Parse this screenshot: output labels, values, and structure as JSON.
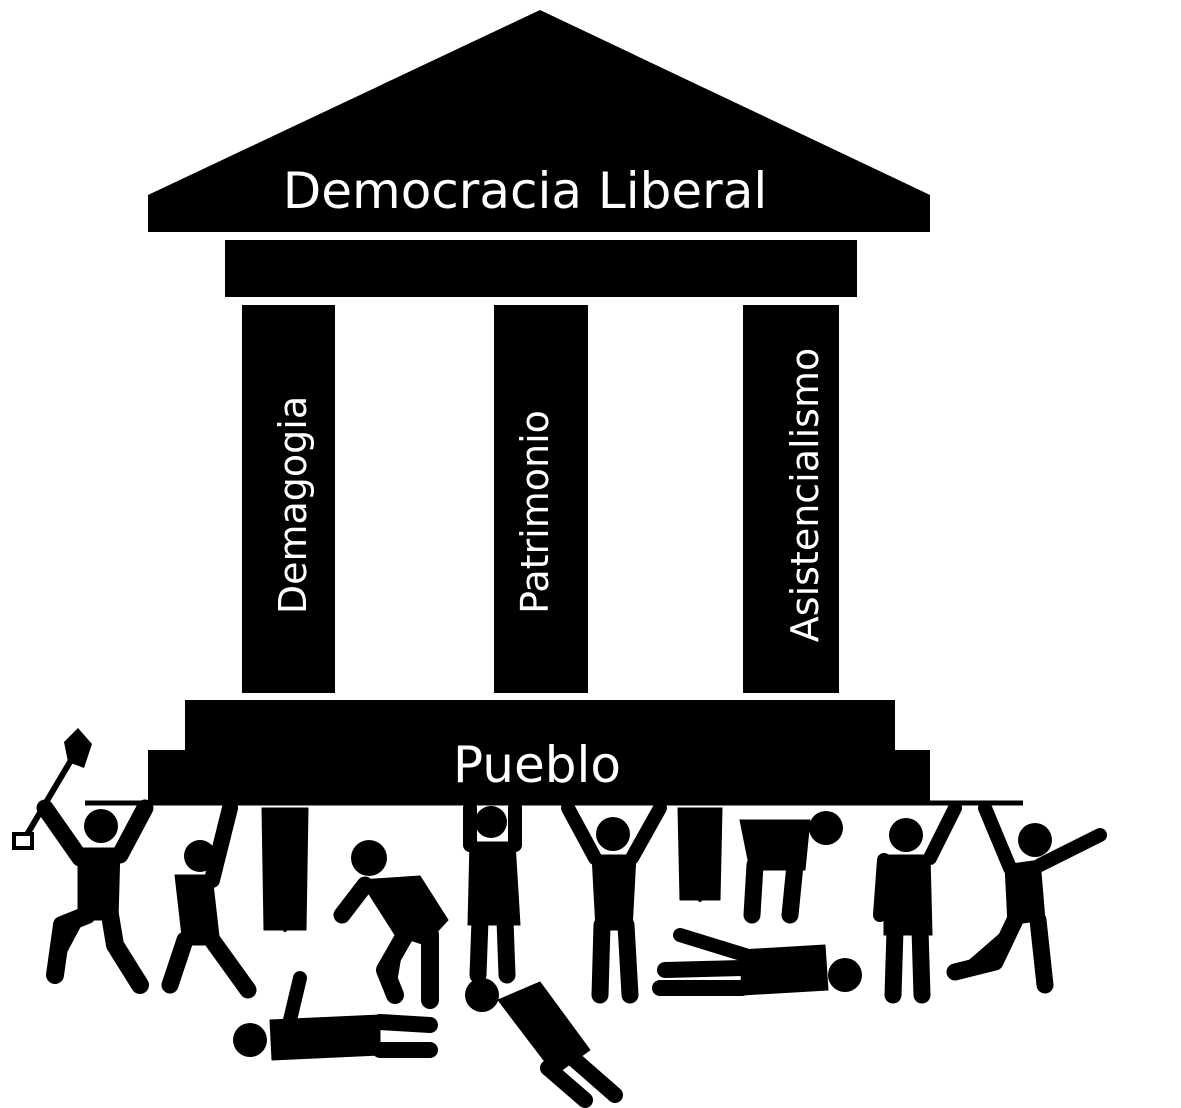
{
  "diagram": {
    "roof_label": "Democracia Liberal",
    "pillars": [
      {
        "label": "Demagogia"
      },
      {
        "label": "Patrimonio"
      },
      {
        "label": "Asistencialismo"
      }
    ],
    "base_label": "Pueblo",
    "colors": {
      "structure": "#000000",
      "text": "#ffffff",
      "background": "#ffffff"
    }
  }
}
